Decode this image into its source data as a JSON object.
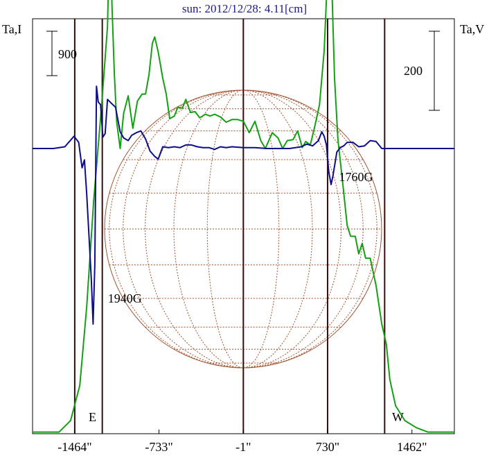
{
  "title": "sun: 2012/12/28: 4.11[cm]",
  "ylabel_left": "Ta,I",
  "ylabel_right": "Ta,V",
  "scale_bar_left": "900",
  "scale_bar_right": "200",
  "limb_labels": {
    "east": "E",
    "west": "W"
  },
  "colors": {
    "intensity": "#12a012",
    "polarization": "#0c0c8c",
    "disk": "#a0522d",
    "frame": "#000000",
    "marker": "#3a0a0a"
  },
  "chart_data": {
    "type": "line",
    "title": "sun: 2012/12/28: 4.11[cm]",
    "xlabel": "",
    "ylabel": "Ta,I",
    "ylabel_right": "Ta,V",
    "xlim": [
      -1830,
      1830
    ],
    "x_ticks": [
      "-1464\"",
      "-733\"",
      "-1\"",
      "730\"",
      "1462\""
    ],
    "x_tick_values": [
      -1464,
      -733,
      -1,
      730,
      1462
    ],
    "vertical_markers": [
      -1464,
      -1,
      730
    ],
    "vertical_marker_limbs": [
      -1225,
      1225
    ],
    "annotations": [
      {
        "text": "1940G",
        "x": -1080,
        "y": -1530
      },
      {
        "text": "1760G",
        "x": 1010,
        "y": -420
      }
    ],
    "series": [
      {
        "name": "I",
        "color": "#12a012",
        "points": [
          [
            -1830,
            -3230
          ],
          [
            -1600,
            -3230
          ],
          [
            -1500,
            -3100
          ],
          [
            -1420,
            -2700
          ],
          [
            -1360,
            -1800
          ],
          [
            -1300,
            -600
          ],
          [
            -1230,
            500
          ],
          [
            -1180,
            1390
          ],
          [
            -1160,
            2560
          ],
          [
            -1140,
            1600
          ],
          [
            -1120,
            850
          ],
          [
            -1100,
            300
          ],
          [
            -1070,
            0
          ],
          [
            -1040,
            400
          ],
          [
            -1000,
            600
          ],
          [
            -960,
            230
          ],
          [
            -920,
            540
          ],
          [
            -880,
            620
          ],
          [
            -850,
            620
          ],
          [
            -820,
            840
          ],
          [
            -790,
            1200
          ],
          [
            -770,
            1270
          ],
          [
            -740,
            1100
          ],
          [
            -700,
            800
          ],
          [
            -670,
            620
          ],
          [
            -640,
            340
          ],
          [
            -600,
            370
          ],
          [
            -570,
            470
          ],
          [
            -530,
            460
          ],
          [
            -500,
            560
          ],
          [
            -460,
            410
          ],
          [
            -420,
            420
          ],
          [
            -380,
            350
          ],
          [
            -330,
            390
          ],
          [
            -290,
            370
          ],
          [
            -250,
            390
          ],
          [
            -200,
            360
          ],
          [
            -150,
            300
          ],
          [
            -100,
            330
          ],
          [
            -50,
            330
          ],
          [
            0,
            310
          ],
          [
            50,
            180
          ],
          [
            100,
            310
          ],
          [
            150,
            90
          ],
          [
            190,
            0
          ],
          [
            250,
            180
          ],
          [
            300,
            120
          ],
          [
            340,
            0
          ],
          [
            380,
            90
          ],
          [
            430,
            100
          ],
          [
            470,
            200
          ],
          [
            510,
            10
          ],
          [
            540,
            80
          ],
          [
            580,
            40
          ],
          [
            620,
            260
          ],
          [
            660,
            500
          ],
          [
            700,
            1110
          ],
          [
            730,
            2010
          ],
          [
            770,
            1720
          ],
          [
            790,
            800
          ],
          [
            820,
            100
          ],
          [
            860,
            -380
          ],
          [
            900,
            -880
          ],
          [
            930,
            -1000
          ],
          [
            970,
            -1000
          ],
          [
            1000,
            -1200
          ],
          [
            1030,
            -1080
          ],
          [
            1060,
            -1250
          ],
          [
            1100,
            -1250
          ],
          [
            1150,
            -1560
          ],
          [
            1200,
            -2000
          ],
          [
            1240,
            -2230
          ],
          [
            1270,
            -2630
          ],
          [
            1320,
            -2930
          ],
          [
            1400,
            -3100
          ],
          [
            1500,
            -3180
          ],
          [
            1600,
            -3230
          ],
          [
            1830,
            -3230
          ]
        ]
      },
      {
        "name": "V",
        "color": "#0c0c8c",
        "points": [
          [
            -1830,
            0
          ],
          [
            -1650,
            0
          ],
          [
            -1550,
            20
          ],
          [
            -1470,
            140
          ],
          [
            -1430,
            70
          ],
          [
            -1400,
            -220
          ],
          [
            -1380,
            -130
          ],
          [
            -1360,
            -520
          ],
          [
            -1340,
            -1000
          ],
          [
            -1320,
            -1500
          ],
          [
            -1305,
            -2000
          ],
          [
            -1290,
            -1320
          ],
          [
            -1275,
            710
          ],
          [
            -1260,
            530
          ],
          [
            -1240,
            500
          ],
          [
            -1220,
            130
          ],
          [
            -1200,
            170
          ],
          [
            -1180,
            560
          ],
          [
            -1150,
            520
          ],
          [
            -1110,
            470
          ],
          [
            -1070,
            190
          ],
          [
            -1040,
            120
          ],
          [
            -1000,
            90
          ],
          [
            -970,
            150
          ],
          [
            -930,
            180
          ],
          [
            -890,
            200
          ],
          [
            -850,
            110
          ],
          [
            -810,
            -30
          ],
          [
            -770,
            -90
          ],
          [
            -740,
            -120
          ],
          [
            -700,
            20
          ],
          [
            -650,
            10
          ],
          [
            -600,
            20
          ],
          [
            -550,
            10
          ],
          [
            -500,
            40
          ],
          [
            -450,
            40
          ],
          [
            -400,
            20
          ],
          [
            -350,
            10
          ],
          [
            -300,
            10
          ],
          [
            -250,
            -10
          ],
          [
            -200,
            20
          ],
          [
            -150,
            10
          ],
          [
            -100,
            20
          ],
          [
            0,
            10
          ],
          [
            100,
            10
          ],
          [
            200,
            0
          ],
          [
            300,
            0
          ],
          [
            400,
            0
          ],
          [
            500,
            20
          ],
          [
            550,
            50
          ],
          [
            600,
            30
          ],
          [
            650,
            90
          ],
          [
            680,
            190
          ],
          [
            700,
            140
          ],
          [
            720,
            40
          ],
          [
            740,
            -260
          ],
          [
            760,
            -410
          ],
          [
            775,
            -320
          ],
          [
            790,
            -200
          ],
          [
            810,
            -40
          ],
          [
            840,
            10
          ],
          [
            870,
            30
          ],
          [
            900,
            70
          ],
          [
            950,
            70
          ],
          [
            1000,
            20
          ],
          [
            1050,
            30
          ],
          [
            1100,
            90
          ],
          [
            1150,
            80
          ],
          [
            1200,
            0
          ],
          [
            1300,
            0
          ],
          [
            1830,
            0
          ]
        ]
      }
    ]
  }
}
